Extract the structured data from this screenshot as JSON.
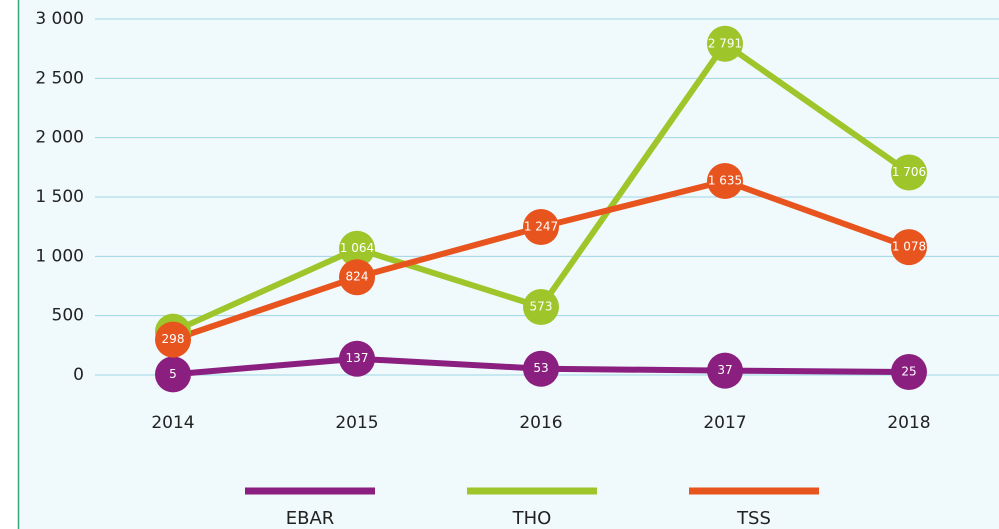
{
  "chart_data": {
    "type": "line",
    "categories": [
      "2014",
      "2015",
      "2016",
      "2017",
      "2018"
    ],
    "series": [
      {
        "name": "EBAR",
        "color": "#8a1f80",
        "values": [
          5,
          137,
          53,
          37,
          25
        ]
      },
      {
        "name": "THO",
        "color": "#9ec62b",
        "values": [
          366,
          1064,
          573,
          2791,
          1706
        ],
        "value_labels": [
          "366",
          "1 064",
          "573",
          "2 791",
          "1 706"
        ]
      },
      {
        "name": "TSS",
        "color": "#e8541d",
        "values": [
          298,
          824,
          1247,
          1635,
          1078
        ],
        "value_labels": [
          "298",
          "824",
          "1 247",
          "1 635",
          "1 078"
        ]
      }
    ],
    "ylim": [
      0,
      3000
    ],
    "yticks": [
      0,
      500,
      {
        "value": 1000,
        "label": "1 000"
      },
      {
        "value": 1500,
        "label": "1 500"
      },
      {
        "value": 2000,
        "label": "2 000"
      },
      {
        "value": 2500,
        "label": "2 500"
      },
      {
        "value": 3000,
        "label": "3 000"
      }
    ],
    "grid": true,
    "legend": "bottom"
  }
}
